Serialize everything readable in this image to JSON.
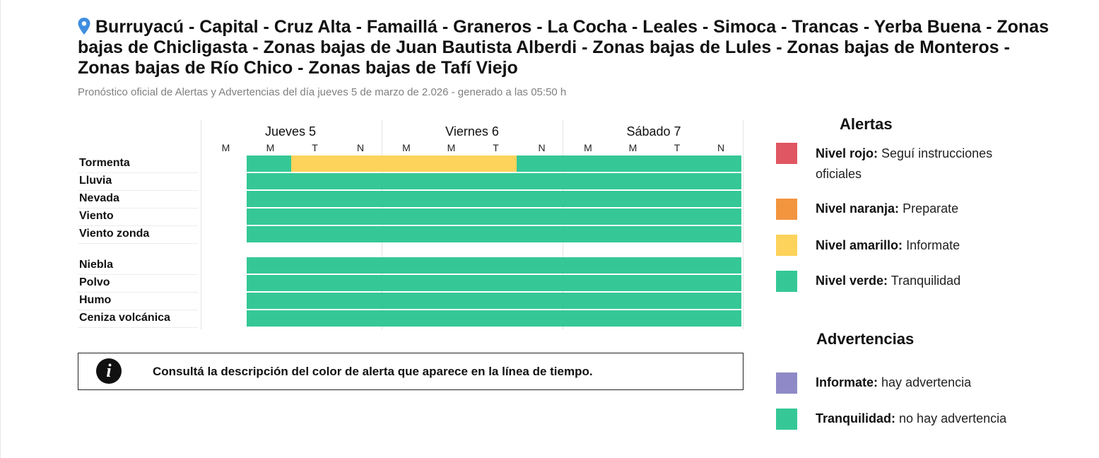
{
  "header": {
    "title": "Burruyacú - Capital - Cruz Alta - Famaillá - Graneros - La Cocha - Leales - Simoca - Trancas - Yerba Buena - Zonas bajas de Chicligasta - Zonas bajas de Juan Bautista Alberdi - Zonas bajas de Lules - Zonas bajas de Monteros - Zonas bajas de Río Chico - Zonas bajas de Tafí Viejo",
    "subtitle": "Pronóstico oficial de Alertas y Advertencias del día jueves 5 de marzo de 2.026 - generado a las 05:50 h"
  },
  "colors": {
    "rojo": "#e05662",
    "naranja": "#f3953f",
    "amarillo": "#fdd35b",
    "verde": "#35c896",
    "violeta": "#8f8ac7",
    "pin": "#3f8ee0"
  },
  "timeline": {
    "days": [
      "Jueves 5",
      "Viernes 6",
      "Sábado 7"
    ],
    "periods": [
      "M",
      "M",
      "T",
      "N",
      "M",
      "M",
      "T",
      "N",
      "M",
      "M",
      "T",
      "N"
    ],
    "group1": [
      {
        "label": "Tormenta",
        "cells": [
          "none",
          "verde",
          "amarillo",
          "amarillo",
          "amarillo",
          "amarillo",
          "amarillo",
          "verde",
          "verde",
          "verde",
          "verde",
          "verde"
        ]
      },
      {
        "label": "Lluvia",
        "cells": [
          "none",
          "verde",
          "verde",
          "verde",
          "verde",
          "verde",
          "verde",
          "verde",
          "verde",
          "verde",
          "verde",
          "verde"
        ]
      },
      {
        "label": "Nevada",
        "cells": [
          "none",
          "verde",
          "verde",
          "verde",
          "verde",
          "verde",
          "verde",
          "verde",
          "verde",
          "verde",
          "verde",
          "verde"
        ]
      },
      {
        "label": "Viento",
        "cells": [
          "none",
          "verde",
          "verde",
          "verde",
          "verde",
          "verde",
          "verde",
          "verde",
          "verde",
          "verde",
          "verde",
          "verde"
        ]
      },
      {
        "label": "Viento zonda",
        "cells": [
          "none",
          "verde",
          "verde",
          "verde",
          "verde",
          "verde",
          "verde",
          "verde",
          "verde",
          "verde",
          "verde",
          "verde"
        ]
      }
    ],
    "group2": [
      {
        "label": "Niebla",
        "cells": [
          "none",
          "verde",
          "verde",
          "verde",
          "verde",
          "verde",
          "verde",
          "verde",
          "verde",
          "verde",
          "verde",
          "verde"
        ]
      },
      {
        "label": "Polvo",
        "cells": [
          "none",
          "verde",
          "verde",
          "verde",
          "verde",
          "verde",
          "verde",
          "verde",
          "verde",
          "verde",
          "verde",
          "verde"
        ]
      },
      {
        "label": "Humo",
        "cells": [
          "none",
          "verde",
          "verde",
          "verde",
          "verde",
          "verde",
          "verde",
          "verde",
          "verde",
          "verde",
          "verde",
          "verde"
        ]
      },
      {
        "label": "Ceniza volcánica",
        "cells": [
          "none",
          "verde",
          "verde",
          "verde",
          "verde",
          "verde",
          "verde",
          "verde",
          "verde",
          "verde",
          "verde",
          "verde"
        ]
      }
    ]
  },
  "info": {
    "text": "Consultá la descripción del color de alerta que aparece en la línea de tiempo."
  },
  "legend": {
    "alertas_title": "Alertas",
    "alertas": [
      {
        "color": "rojo",
        "bold": "Nivel rojo:",
        "text": "Seguí instrucciones oficiales"
      },
      {
        "color": "naranja",
        "bold": "Nivel naranja:",
        "text": "Preparate"
      },
      {
        "color": "amarillo",
        "bold": "Nivel amarillo:",
        "text": "Informate"
      },
      {
        "color": "verde",
        "bold": "Nivel verde:",
        "text": "Tranquilidad"
      }
    ],
    "advertencias_title": "Advertencias",
    "advertencias": [
      {
        "color": "violeta",
        "bold": "Informate:",
        "text": "hay advertencia"
      },
      {
        "color": "verde",
        "bold": "Tranquilidad:",
        "text": "no hay advertencia"
      }
    ]
  }
}
